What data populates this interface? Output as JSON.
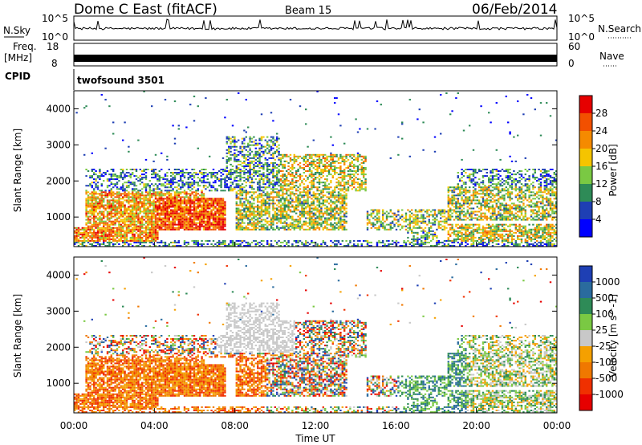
{
  "header": {
    "title": "Dome C East (fitACF)",
    "beam": "Beam 15",
    "date": "06/Feb/2014"
  },
  "top_panels": {
    "nsky": {
      "label": "N.Sky",
      "ticks": [
        "10^5",
        "10^0"
      ]
    },
    "nsearch": {
      "label": "N.Search",
      "ticks": [
        "10^5",
        "10^0"
      ]
    },
    "freq": {
      "label": "Freq.",
      "unit": "[MHz]",
      "ticks": [
        "18",
        "8"
      ]
    },
    "nave": {
      "label": "Nave",
      "ticks": [
        "60",
        "0"
      ]
    },
    "cpid": {
      "label": "CPID",
      "value": "twofsound 3501"
    }
  },
  "chart_data": [
    {
      "type": "heatmap",
      "name": "power-panel",
      "ylabel": "Slant Range [km]",
      "ylim": [
        180,
        4500
      ],
      "yticks": [
        "1000",
        "2000",
        "3000",
        "4000"
      ],
      "xlim": [
        0,
        24
      ],
      "colorbar": {
        "label": "Power [dB]",
        "tick_labels": [
          "4",
          "8",
          "12",
          "16",
          "20",
          "24",
          "28"
        ],
        "colors": [
          "#0000ff",
          "#1e3fb4",
          "#2e8b57",
          "#7ac943",
          "#f5c400",
          "#f58a00",
          "#f25000",
          "#e60000"
        ]
      }
    },
    {
      "type": "heatmap",
      "name": "velocity-panel",
      "ylabel": "Slant Range [km]",
      "ylim": [
        180,
        4500
      ],
      "yticks": [
        "1000",
        "2000",
        "3000",
        "4000"
      ],
      "xlim": [
        0,
        24
      ],
      "xlabel": "Time UT",
      "xticks": [
        "00:00",
        "04:00",
        "08:00",
        "12:00",
        "16:00",
        "20:00",
        "00:00"
      ],
      "colorbar": {
        "label": "Velocity [m s^-1]",
        "tick_labels": [
          "1000",
          "500",
          "100",
          "25",
          "-25",
          "-100",
          "-500",
          "-1000"
        ],
        "colors": [
          "#1e3fb4",
          "#2a6b9e",
          "#2e8b57",
          "#7ac943",
          "#c8c8c8",
          "#f5a000",
          "#f07800",
          "#f03000",
          "#e60000"
        ]
      }
    }
  ],
  "colors": {
    "power_low": "#1e3fb4",
    "power_high": "#e60000",
    "velocity_toward": "#2e8b57",
    "velocity_away": "#f07800",
    "ground_scatter": "#c8c8c8"
  }
}
